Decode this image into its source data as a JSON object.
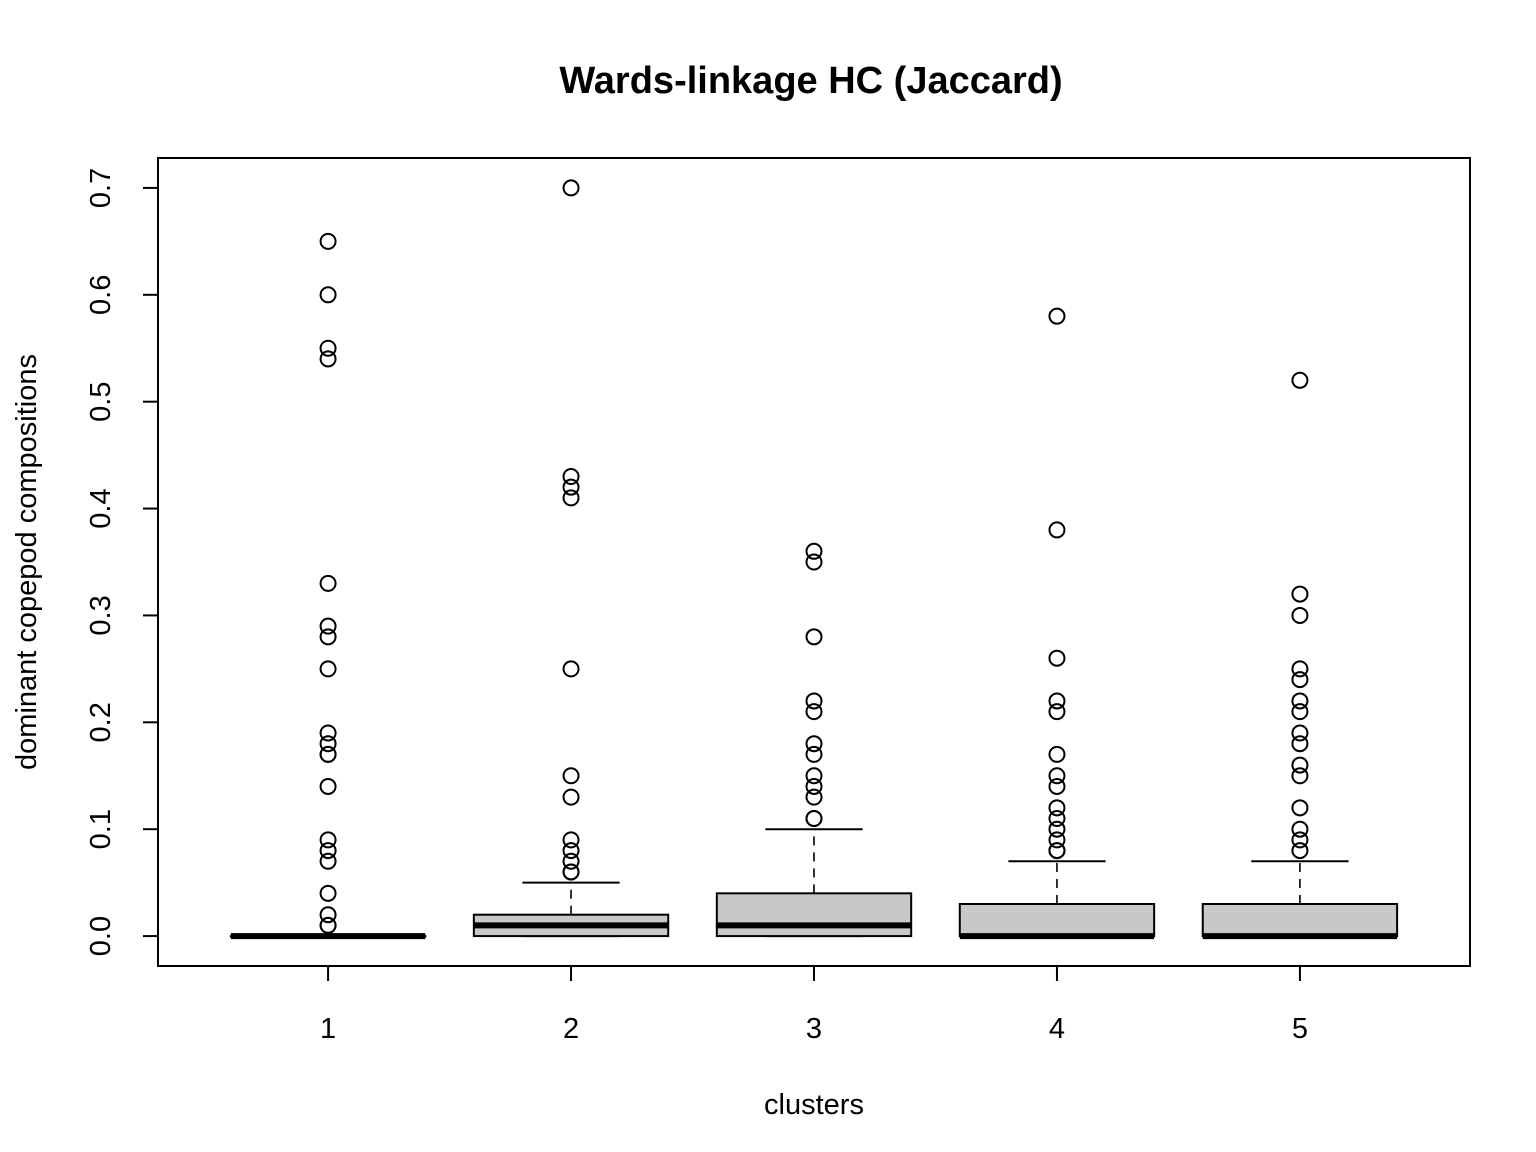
{
  "chart_data": {
    "type": "boxplot",
    "title": "Wards-linkage HC (Jaccard)",
    "xlabel": "clusters",
    "ylabel": "dominant copepod compositions",
    "ylim": [
      -0.028,
      0.728
    ],
    "yticks": [
      0.0,
      0.1,
      0.2,
      0.3,
      0.4,
      0.5,
      0.6,
      0.7
    ],
    "ytick_labels": [
      "0.0",
      "0.1",
      "0.2",
      "0.3",
      "0.4",
      "0.5",
      "0.6",
      "0.7"
    ],
    "categories": [
      "1",
      "2",
      "3",
      "4",
      "5"
    ],
    "box_color": "#c8c8c8",
    "series": [
      {
        "category": "1",
        "whisker_low": 0.0,
        "q1": 0.0,
        "median": 0.0,
        "q3": 0.0,
        "whisker_high": 0.0,
        "outliers": [
          0.65,
          0.6,
          0.55,
          0.54,
          0.33,
          0.29,
          0.28,
          0.25,
          0.19,
          0.18,
          0.17,
          0.17,
          0.14,
          0.09,
          0.08,
          0.07,
          0.04,
          0.02,
          0.01,
          0.01
        ]
      },
      {
        "category": "2",
        "whisker_low": 0.0,
        "q1": 0.0,
        "median": 0.01,
        "q3": 0.02,
        "whisker_high": 0.05,
        "outliers": [
          0.7,
          0.43,
          0.42,
          0.41,
          0.25,
          0.15,
          0.13,
          0.09,
          0.08,
          0.07,
          0.06,
          0.06
        ]
      },
      {
        "category": "3",
        "whisker_low": 0.0,
        "q1": 0.0,
        "median": 0.01,
        "q3": 0.04,
        "whisker_high": 0.1,
        "outliers": [
          0.36,
          0.35,
          0.28,
          0.22,
          0.21,
          0.18,
          0.17,
          0.15,
          0.14,
          0.13,
          0.11,
          0.11
        ]
      },
      {
        "category": "4",
        "whisker_low": 0.0,
        "q1": 0.0,
        "median": 0.0,
        "q3": 0.03,
        "whisker_high": 0.07,
        "outliers": [
          0.58,
          0.38,
          0.26,
          0.22,
          0.21,
          0.17,
          0.15,
          0.14,
          0.12,
          0.11,
          0.1,
          0.09,
          0.08,
          0.08
        ]
      },
      {
        "category": "5",
        "whisker_low": 0.0,
        "q1": 0.0,
        "median": 0.0,
        "q3": 0.03,
        "whisker_high": 0.07,
        "outliers": [
          0.52,
          0.32,
          0.3,
          0.25,
          0.24,
          0.22,
          0.21,
          0.19,
          0.18,
          0.16,
          0.15,
          0.12,
          0.1,
          0.09,
          0.08
        ]
      }
    ]
  }
}
